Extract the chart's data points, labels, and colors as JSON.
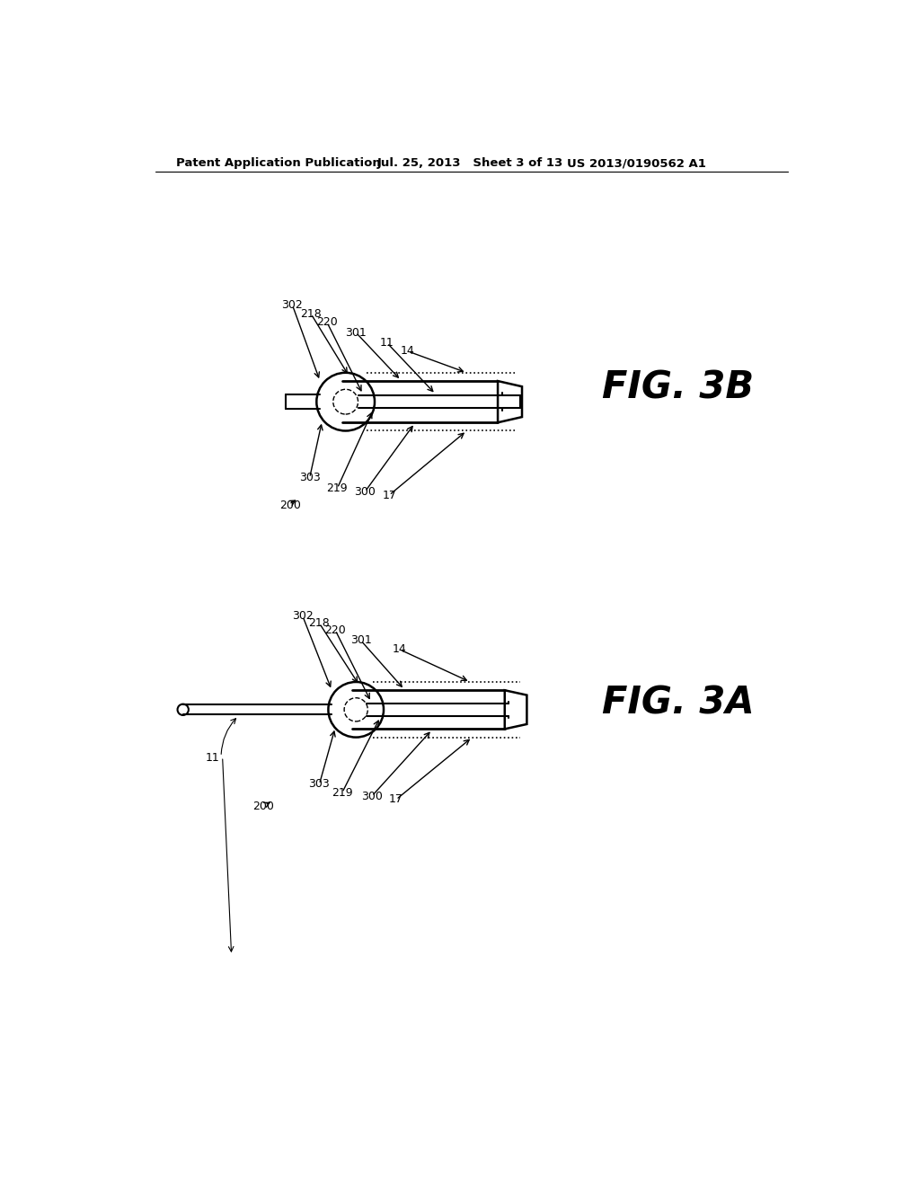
{
  "background_color": "#ffffff",
  "header_left": "Patent Application Publication",
  "header_mid": "Jul. 25, 2013   Sheet 3 of 13",
  "header_right": "US 2013/0190562 A1",
  "fig3b_label": "FIG. 3B",
  "fig3a_label": "FIG. 3A"
}
